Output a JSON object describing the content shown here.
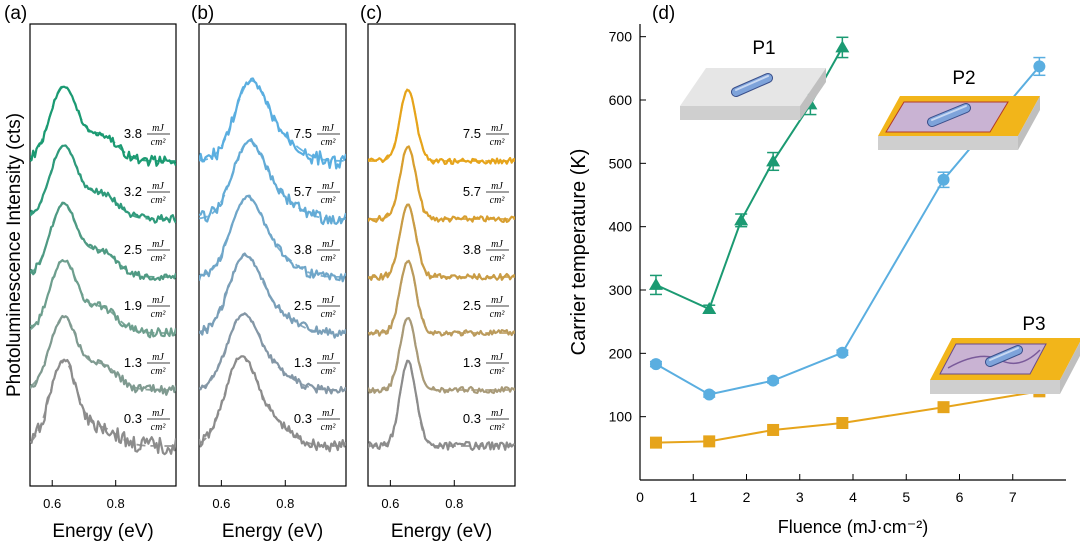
{
  "colors": {
    "green": "#1b9a72",
    "blue": "#5aaee0",
    "orange": "#e6a41b",
    "grey": "#8c8c8c",
    "device_slab": "#e6e6e6",
    "device_side": "#cfcfcf",
    "gold_frame": "#f2b51a",
    "gold_inner": "#c9b3d3",
    "wire": "#7ea3da"
  },
  "chart_data": [
    {
      "type": "line",
      "panel": "(a)",
      "xlabel": "Energy (eV)",
      "ylabel": "Photoluminescence Intensity (cts)",
      "xlim": [
        0.53,
        0.99
      ],
      "x_ticks": [
        0.6,
        0.8
      ],
      "x_tick_labels": [
        "0.6",
        "0.8"
      ],
      "peak_energy": 0.635,
      "spectra": [
        {
          "fluence": "0.3",
          "color": "#8c8c8c"
        },
        {
          "fluence": "1.3",
          "color": "#7f9a90"
        },
        {
          "fluence": "1.9",
          "color": "#6e9f8e"
        },
        {
          "fluence": "2.5",
          "color": "#4f9a83"
        },
        {
          "fluence": "3.2",
          "color": "#2f9a7b"
        },
        {
          "fluence": "3.8",
          "color": "#1b9a72"
        }
      ],
      "unit_num": "mJ",
      "unit_den": "cm²"
    },
    {
      "type": "line",
      "panel": "(b)",
      "xlabel": "Energy (eV)",
      "xlim": [
        0.53,
        0.99
      ],
      "x_ticks": [
        0.6,
        0.8
      ],
      "x_tick_labels": [
        "0.6",
        "0.8"
      ],
      "peak_energy": 0.66,
      "spectra": [
        {
          "fluence": "0.3",
          "color": "#8c8c8c"
        },
        {
          "fluence": "1.3",
          "color": "#8497a6"
        },
        {
          "fluence": "2.5",
          "color": "#7a9fb8"
        },
        {
          "fluence": "3.8",
          "color": "#6fa6c9"
        },
        {
          "fluence": "5.7",
          "color": "#63abd6"
        },
        {
          "fluence": "7.5",
          "color": "#5aaee0"
        }
      ],
      "unit_num": "mJ",
      "unit_den": "cm²"
    },
    {
      "type": "line",
      "panel": "(c)",
      "xlabel": "Energy (eV)",
      "xlim": [
        0.53,
        0.99
      ],
      "x_ticks": [
        0.6,
        0.8
      ],
      "x_tick_labels": [
        "0.6",
        "0.8"
      ],
      "peak_energy": 0.655,
      "spectra": [
        {
          "fluence": "0.3",
          "color": "#8c8c8c"
        },
        {
          "fluence": "1.3",
          "color": "#a89a78"
        },
        {
          "fluence": "2.5",
          "color": "#bb9b5c"
        },
        {
          "fluence": "3.8",
          "color": "#c99c45"
        },
        {
          "fluence": "5.7",
          "color": "#d89f30"
        },
        {
          "fluence": "7.5",
          "color": "#e6a41b"
        }
      ],
      "unit_num": "mJ",
      "unit_den": "cm²"
    },
    {
      "type": "line",
      "panel": "(d)",
      "xlabel": "Fluence (mJ·cm⁻²)",
      "ylabel": "Carrier temperature (K)",
      "xlim": [
        0,
        8
      ],
      "ylim": [
        0,
        720
      ],
      "x_ticks": [
        0,
        1,
        2,
        3,
        4,
        5,
        6,
        7
      ],
      "y_ticks": [
        100,
        200,
        300,
        400,
        500,
        600,
        700
      ],
      "series": [
        {
          "name": "P1",
          "marker": "triangle",
          "color": "#1b9a72",
          "x": [
            0.3,
            1.3,
            1.9,
            2.5,
            3.2,
            3.8
          ],
          "y": [
            308,
            270,
            410,
            503,
            593,
            683
          ],
          "err": [
            15,
            6,
            10,
            14,
            16,
            16
          ]
        },
        {
          "name": "P2",
          "marker": "circle",
          "color": "#5aaee0",
          "x": [
            0.3,
            1.3,
            2.5,
            3.8,
            5.7,
            7.5
          ],
          "y": [
            183,
            135,
            157,
            201,
            474,
            653
          ],
          "err": [
            4,
            4,
            4,
            4,
            12,
            14
          ]
        },
        {
          "name": "P3",
          "marker": "square",
          "color": "#e6a41b",
          "x": [
            0.3,
            1.3,
            2.5,
            3.8,
            5.7,
            7.5
          ],
          "y": [
            59,
            61,
            79,
            90,
            115,
            140
          ],
          "err": [
            0,
            0,
            0,
            0,
            0,
            0
          ]
        }
      ]
    }
  ]
}
